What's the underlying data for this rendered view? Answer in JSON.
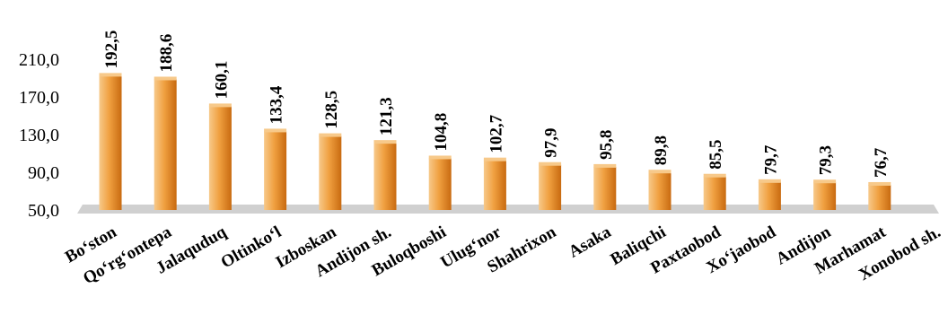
{
  "chart_data": {
    "type": "bar",
    "categories": [
      "Bo‘ston",
      "Qo‘rg‘ontepa",
      "Jalaquduq",
      "Oltinko‘l",
      "Izboskan",
      "Andijon sh.",
      "Buloqboshi",
      "Ulug‘nor",
      "Shahrixon",
      "Asaka",
      "Baliqchi",
      "Paxtaobod",
      "Xo‘jaobod",
      "Andijon",
      "Marhamat",
      "Xonobod sh."
    ],
    "values": [
      192.5,
      188.6,
      160.1,
      133.4,
      128.5,
      121.3,
      104.8,
      102.7,
      97.9,
      95.8,
      89.8,
      85.5,
      79.7,
      79.3,
      76.7,
      null
    ],
    "data_labels": [
      "192,5",
      "188,6",
      "160,1",
      "133,4",
      "128,5",
      "121,3",
      "104,8",
      "102,7",
      "97,9",
      "95,8",
      "89,8",
      "85,5",
      "79,7",
      "79,3",
      "76,7",
      ""
    ],
    "y_ticks": [
      50,
      90,
      130,
      170,
      210
    ],
    "y_tick_labels": [
      "50,0",
      "90,0",
      "130,0",
      "170,0",
      "210,0"
    ],
    "ylim": [
      50,
      210
    ],
    "title": "",
    "xlabel": "",
    "ylabel": "",
    "grid": false,
    "legend": "none",
    "colors": {
      "bar_light": "#f7c98a",
      "bar_mid": "#f0a040",
      "bar_dark": "#c86a10",
      "floor": "#d0d0d0"
    }
  }
}
